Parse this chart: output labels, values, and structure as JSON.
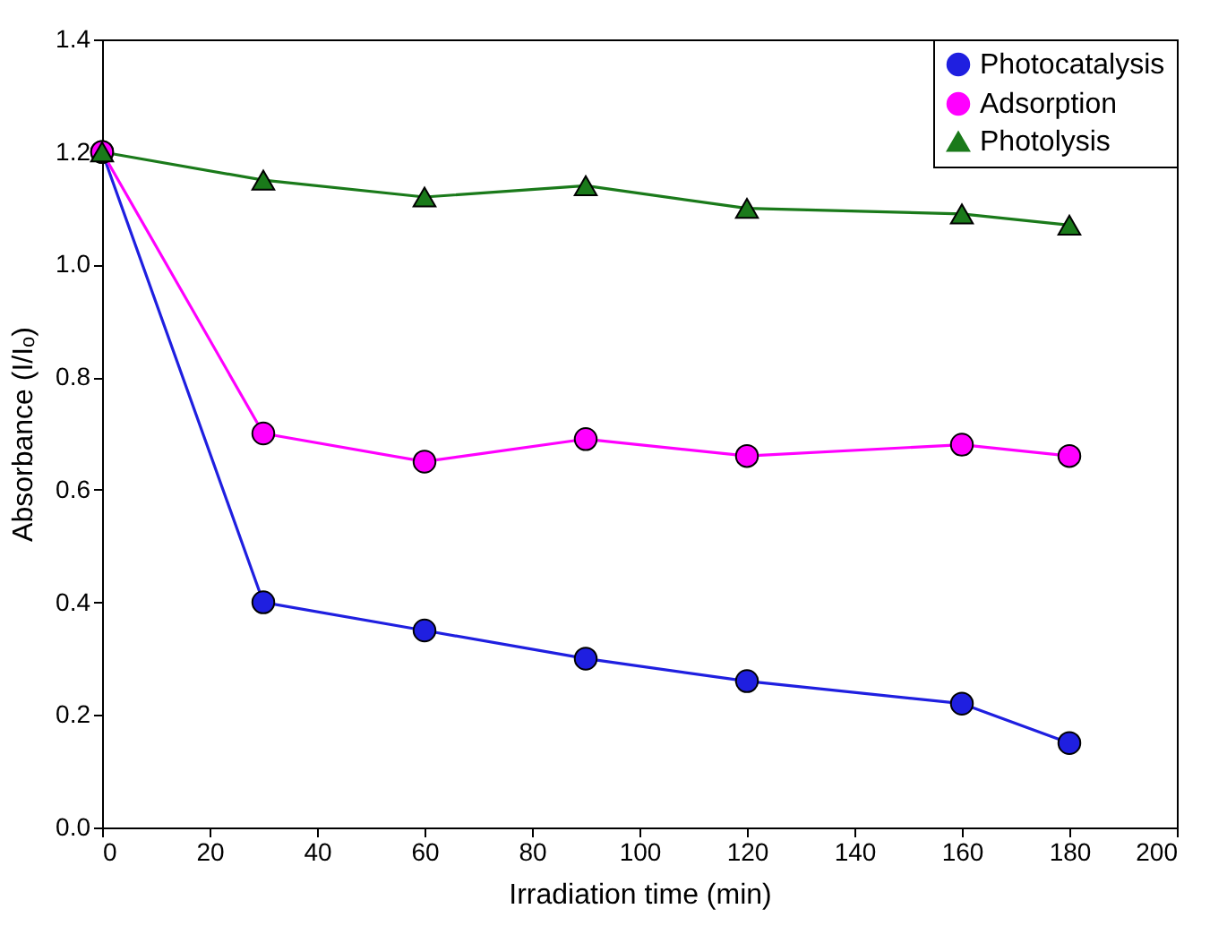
{
  "chart_data": {
    "type": "line",
    "xlabel": "Irradiation time (min)",
    "ylabel": "Absorbance (I/Iₒ)",
    "x": [
      0,
      30,
      60,
      90,
      120,
      160,
      180
    ],
    "series": [
      {
        "name": "Photocatalysis",
        "color": "#1f1fe0",
        "marker": "circle",
        "values": [
          1.2,
          0.4,
          0.35,
          0.3,
          0.26,
          0.22,
          0.15
        ]
      },
      {
        "name": "Adsorption",
        "color": "#ff00ff",
        "marker": "circle",
        "values": [
          1.2,
          0.7,
          0.65,
          0.69,
          0.66,
          0.68,
          0.66
        ]
      },
      {
        "name": "Photolysis",
        "color": "#1a7a1a",
        "marker": "triangle",
        "values": [
          1.2,
          1.15,
          1.12,
          1.14,
          1.1,
          1.09,
          1.07
        ]
      }
    ],
    "xlim": [
      0,
      200
    ],
    "xticks": [
      0,
      20,
      40,
      60,
      80,
      100,
      120,
      140,
      160,
      180,
      200
    ],
    "ylim": [
      0,
      1.4
    ],
    "yticks": [
      {
        "value": 0,
        "label": "0.0"
      },
      0.2,
      0.4,
      0.6,
      0.8,
      {
        "value": 1,
        "label": "1.0"
      },
      1.2,
      1.4
    ],
    "grid": false,
    "legend": "top right",
    "line_style": "solid"
  }
}
